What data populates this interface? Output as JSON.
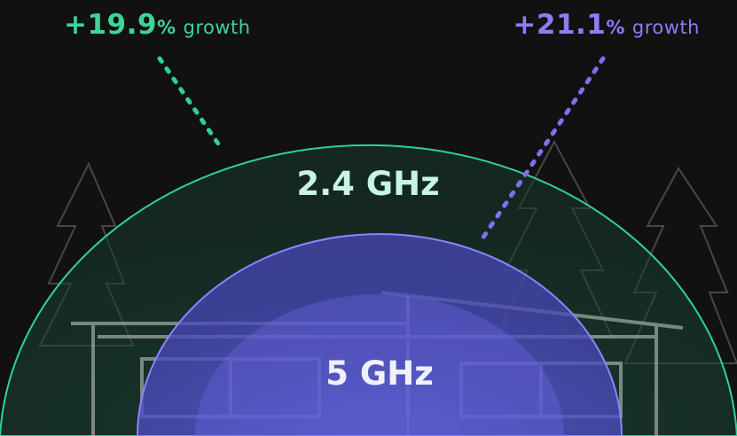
{
  "growth_left": {
    "value": "+19.9",
    "unit": "%",
    "label": "growth",
    "color": "#3fd39a"
  },
  "growth_right": {
    "value": "+21.1",
    "unit": "%",
    "label": "growth",
    "color": "#8f7cf6"
  },
  "bands": {
    "outer_label": "2.4 GHz",
    "inner_label": "5 GHz",
    "outer_color": "#2fd198",
    "inner_color": "#6a66f0"
  },
  "background": {
    "color": "#111111",
    "icons": [
      "pine-tree-icon",
      "house-outline-icon"
    ]
  }
}
